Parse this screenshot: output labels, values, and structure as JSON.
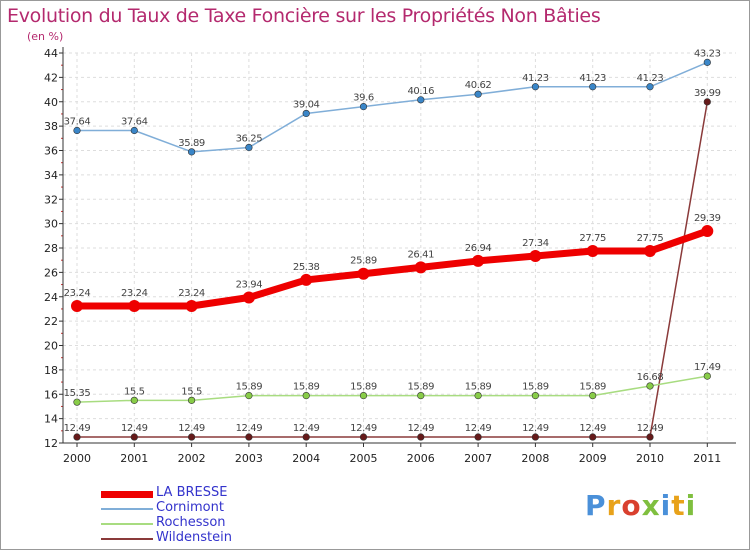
{
  "header": {
    "title": "Evolution du Taux de Taxe Foncière sur les Propriétés Non Bâties",
    "unit": "(en %)"
  },
  "logo": {
    "letters": [
      "P",
      "r",
      "o",
      "x",
      "i",
      "t",
      "i"
    ],
    "colors": [
      "#4a90d9",
      "#e8a21a",
      "#d9402e",
      "#7fbf3f",
      "#4a90d9",
      "#e8a21a",
      "#7fbf3f"
    ]
  },
  "chart_data": {
    "type": "line",
    "x": [
      "2000",
      "2001",
      "2002",
      "2003",
      "2004",
      "2005",
      "2006",
      "2007",
      "2008",
      "2009",
      "2010",
      "2011"
    ],
    "ylim": [
      12,
      44
    ],
    "yticks": [
      12,
      14,
      16,
      18,
      20,
      22,
      24,
      26,
      28,
      30,
      32,
      34,
      36,
      38,
      40,
      42,
      44
    ],
    "grid": true,
    "legend_position": "bottom-left",
    "series": [
      {
        "name": "LA BRESSE",
        "color": "#ee0000",
        "point_color": "#ee0000",
        "width": 7,
        "point_radius": 6,
        "values": [
          23.24,
          23.24,
          23.24,
          23.94,
          25.38,
          25.89,
          26.41,
          26.94,
          27.34,
          27.75,
          27.75,
          29.39
        ],
        "labels": [
          "23.24",
          "23.24",
          "23.24",
          "23.94",
          "25.38",
          "25.89",
          "26.41",
          "26.94",
          "27.34",
          "27.75",
          "27.75",
          "29.39"
        ]
      },
      {
        "name": "Cornimont",
        "color": "#80aed8",
        "point_color": "#3a86c8",
        "width": 1.5,
        "point_radius": 3.3,
        "values": [
          37.64,
          37.64,
          35.89,
          36.25,
          39.04,
          39.6,
          40.16,
          40.62,
          41.23,
          41.23,
          41.23,
          43.23
        ],
        "labels": [
          "37.64",
          "37.64",
          "35.89",
          "36.25",
          "39.04",
          "39.6",
          "40.16",
          "40.62",
          "41.23",
          "41.23",
          "41.23",
          "43.23"
        ]
      },
      {
        "name": "Rochesson",
        "color": "#a8dc80",
        "point_color": "#88cc48",
        "width": 1.5,
        "point_radius": 3.3,
        "values": [
          15.35,
          15.5,
          15.5,
          15.89,
          15.89,
          15.89,
          15.89,
          15.89,
          15.89,
          15.89,
          16.68,
          17.49
        ],
        "labels": [
          "15.35",
          "15.5",
          "15.5",
          "15.89",
          "15.89",
          "15.89",
          "15.89",
          "15.89",
          "15.89",
          "15.89",
          "16.68",
          "17.49"
        ]
      },
      {
        "name": "Wildenstein",
        "color": "#8a3a3a",
        "point_color": "#661a1a",
        "width": 1.5,
        "point_radius": 3.3,
        "values": [
          12.49,
          12.49,
          12.49,
          12.49,
          12.49,
          12.49,
          12.49,
          12.49,
          12.49,
          12.49,
          12.49,
          39.99
        ],
        "labels": [
          "12.49",
          "12.49",
          "12.49",
          "12.49",
          "12.49",
          "12.49",
          "12.49",
          "12.49",
          "12.49",
          "12.49",
          "12.49",
          "39.99"
        ]
      }
    ]
  }
}
